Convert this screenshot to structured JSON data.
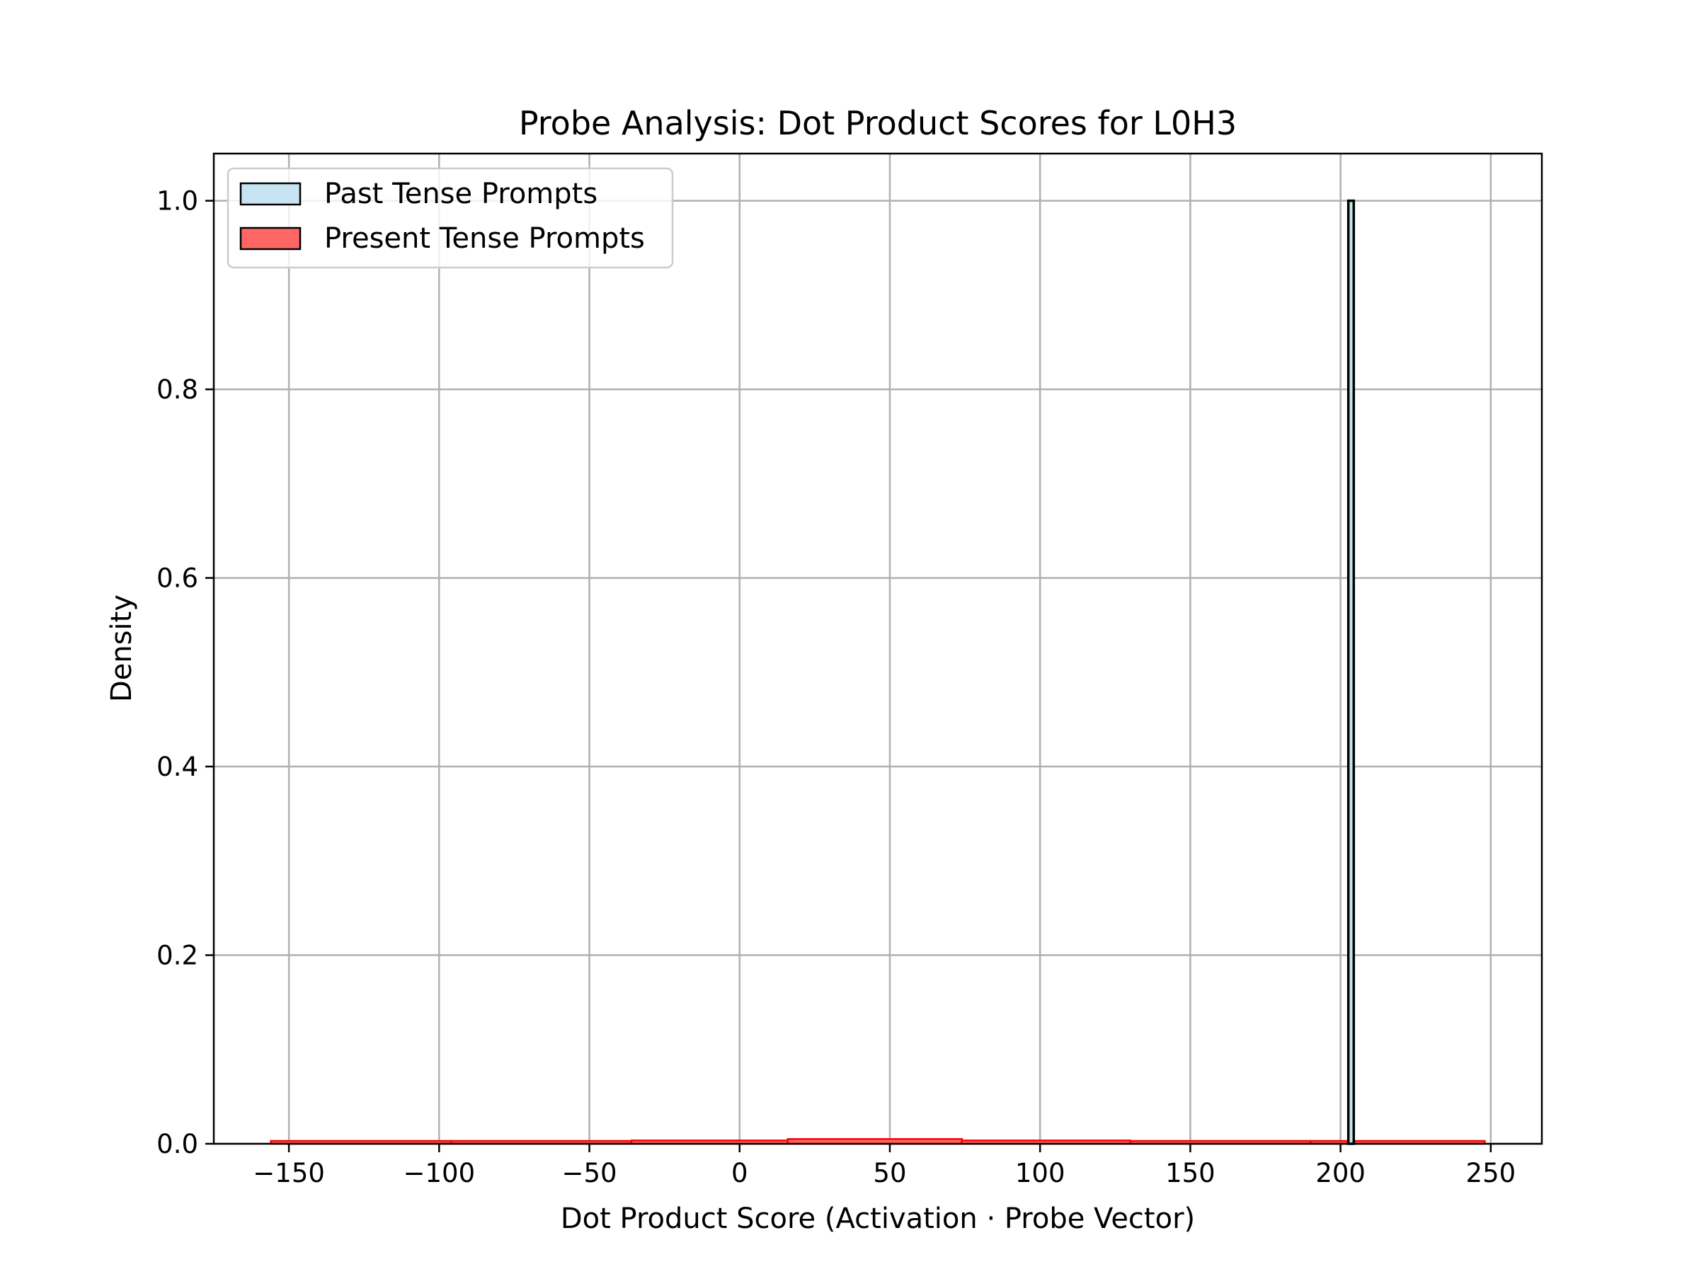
{
  "chart_data": {
    "type": "bar",
    "title": "Probe Analysis: Dot Product Scores for L0H3",
    "xlabel": "Dot Product Score (Activation · Probe Vector)",
    "ylabel": "Density",
    "xlim": [
      -175,
      267
    ],
    "ylim": [
      0.0,
      1.05
    ],
    "xticks": [
      -150,
      -100,
      -50,
      0,
      50,
      100,
      150,
      200,
      250
    ],
    "xtick_labels": [
      "−150",
      "−100",
      "−50",
      "0",
      "50",
      "100",
      "150",
      "200",
      "250"
    ],
    "yticks": [
      0.0,
      0.2,
      0.4,
      0.6,
      0.8,
      1.0
    ],
    "ytick_labels": [
      "0.0",
      "0.2",
      "0.4",
      "0.6",
      "0.8",
      "1.0"
    ],
    "grid": true,
    "legend_position": "top-left",
    "series": [
      {
        "name": "Past Tense Prompts",
        "color": "#c6e4f2",
        "edge_color": "#000000",
        "bins": [
          {
            "x0": 202.6,
            "x1": 204.4,
            "density": 1.0
          }
        ]
      },
      {
        "name": "Present Tense Prompts",
        "color": "#ff6666",
        "edge_color": "#ff0000",
        "bins": [
          {
            "x0": -156,
            "x1": -96,
            "density": 0.0025
          },
          {
            "x0": -96,
            "x1": -36,
            "density": 0.003
          },
          {
            "x0": -36,
            "x1": 16,
            "density": 0.0035
          },
          {
            "x0": 16,
            "x1": 74,
            "density": 0.005
          },
          {
            "x0": 74,
            "x1": 130,
            "density": 0.0035
          },
          {
            "x0": 130,
            "x1": 190,
            "density": 0.0025
          },
          {
            "x0": 190,
            "x1": 248,
            "density": 0.0015
          }
        ]
      }
    ]
  }
}
